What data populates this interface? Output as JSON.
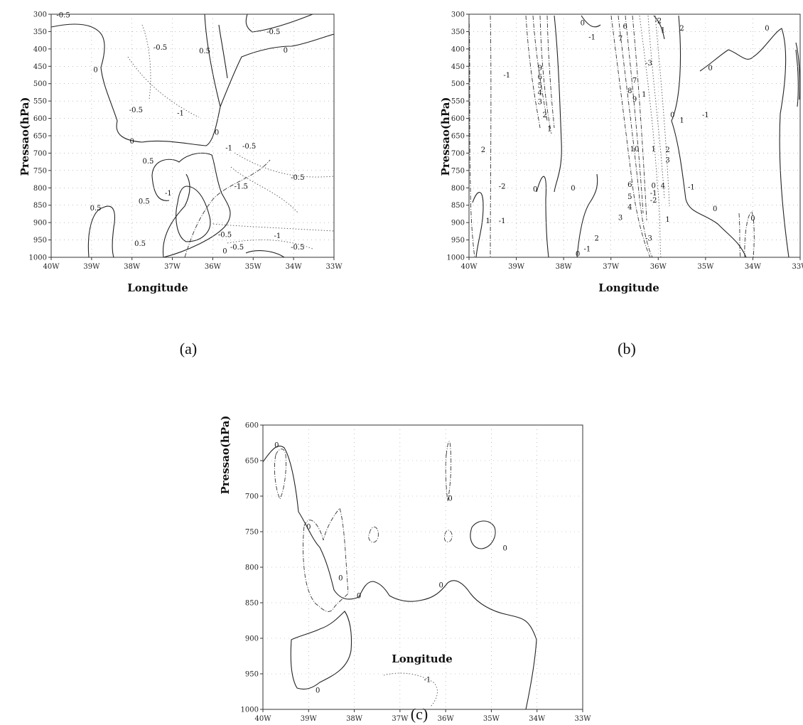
{
  "chart_data": [
    {
      "id": "a",
      "type": "contour",
      "caption": "(a)",
      "xlabel": "Longitude",
      "ylabel": "Pressao(hPa)",
      "x_ticks": [
        "40W",
        "39W",
        "38W",
        "37W",
        "36W",
        "35W",
        "34W",
        "33W"
      ],
      "xlim": [
        -40,
        -33
      ],
      "y_ticks": [
        300,
        350,
        400,
        450,
        500,
        550,
        600,
        650,
        700,
        750,
        800,
        850,
        900,
        950,
        1000
      ],
      "ylim": [
        300,
        1000
      ],
      "contour_labels": [
        {
          "text": "-0.5",
          "lon": -39.7,
          "p": 302
        },
        {
          "text": "-0.5",
          "lon": -37.3,
          "p": 395
        },
        {
          "text": "-0.5",
          "lon": -34.5,
          "p": 350
        },
        {
          "text": "0.5",
          "lon": -36.2,
          "p": 405
        },
        {
          "text": "0",
          "lon": -34.2,
          "p": 403
        },
        {
          "text": "0",
          "lon": -38.9,
          "p": 460
        },
        {
          "text": "-0.5",
          "lon": -37.9,
          "p": 575
        },
        {
          "text": "-1",
          "lon": -36.8,
          "p": 585
        },
        {
          "text": "0",
          "lon": -35.9,
          "p": 640
        },
        {
          "text": "-1",
          "lon": -35.6,
          "p": 685
        },
        {
          "text": "-0.5",
          "lon": -35.1,
          "p": 680
        },
        {
          "text": "0",
          "lon": -38.0,
          "p": 665
        },
        {
          "text": "0.5",
          "lon": -37.6,
          "p": 723
        },
        {
          "text": "-1.5",
          "lon": -35.3,
          "p": 795
        },
        {
          "text": "-0.5",
          "lon": -33.9,
          "p": 770
        },
        {
          "text": "0.5",
          "lon": -37.7,
          "p": 838
        },
        {
          "text": "-1",
          "lon": -37.1,
          "p": 815
        },
        {
          "text": "0.5",
          "lon": -38.9,
          "p": 858
        },
        {
          "text": "-0.5",
          "lon": -35.7,
          "p": 935
        },
        {
          "text": "-1",
          "lon": -34.4,
          "p": 938
        },
        {
          "text": "0.5",
          "lon": -37.8,
          "p": 960
        },
        {
          "text": "-0.5",
          "lon": -35.4,
          "p": 970
        },
        {
          "text": "-0.5",
          "lon": -33.9,
          "p": 970
        },
        {
          "text": "0",
          "lon": -35.7,
          "p": 982
        }
      ]
    },
    {
      "id": "b",
      "type": "contour",
      "caption": "(b)",
      "xlabel": "Longitude",
      "ylabel": "Pressao(hPa)",
      "x_ticks": [
        "40W",
        "39W",
        "38W",
        "37W",
        "36W",
        "35W",
        "34W",
        "33W"
      ],
      "xlim": [
        -40,
        -33
      ],
      "y_ticks": [
        300,
        350,
        400,
        450,
        500,
        550,
        600,
        650,
        700,
        750,
        800,
        850,
        900,
        950,
        1000
      ],
      "ylim": [
        300,
        1000
      ],
      "contour_labels": [
        {
          "text": "0",
          "lon": -37.6,
          "p": 325
        },
        {
          "text": "-1",
          "lon": -37.4,
          "p": 365
        },
        {
          "text": "6",
          "lon": -36.7,
          "p": 335
        },
        {
          "text": "7",
          "lon": -36.8,
          "p": 370
        },
        {
          "text": "-2",
          "lon": -36.0,
          "p": 318
        },
        {
          "text": "1",
          "lon": -35.9,
          "p": 345
        },
        {
          "text": "2",
          "lon": -35.5,
          "p": 340
        },
        {
          "text": "-1",
          "lon": -39.2,
          "p": 475
        },
        {
          "text": "0",
          "lon": -34.9,
          "p": 455
        },
        {
          "text": "0",
          "lon": -33.7,
          "p": 340
        },
        {
          "text": "9",
          "lon": -38.5,
          "p": 455
        },
        {
          "text": "6",
          "lon": -38.5,
          "p": 480
        },
        {
          "text": "5",
          "lon": -38.5,
          "p": 505
        },
        {
          "text": "4",
          "lon": -38.5,
          "p": 525
        },
        {
          "text": "3",
          "lon": -38.5,
          "p": 552
        },
        {
          "text": "2",
          "lon": -38.4,
          "p": 590
        },
        {
          "text": "1",
          "lon": -38.3,
          "p": 630
        },
        {
          "text": "-3",
          "lon": -36.2,
          "p": 440
        },
        {
          "text": "7",
          "lon": -36.5,
          "p": 490
        },
        {
          "text": "8",
          "lon": -36.6,
          "p": 520
        },
        {
          "text": "1",
          "lon": -36.3,
          "p": 530
        },
        {
          "text": "9",
          "lon": -36.5,
          "p": 545
        },
        {
          "text": "0",
          "lon": -35.7,
          "p": 590
        },
        {
          "text": "1",
          "lon": -35.5,
          "p": 605
        },
        {
          "text": "-1",
          "lon": -35.0,
          "p": 590
        },
        {
          "text": "10",
          "lon": -36.5,
          "p": 688
        },
        {
          "text": "1",
          "lon": -36.1,
          "p": 688
        },
        {
          "text": "2",
          "lon": -35.8,
          "p": 690
        },
        {
          "text": "3",
          "lon": -35.8,
          "p": 720
        },
        {
          "text": "2",
          "lon": -39.7,
          "p": 690
        },
        {
          "text": "-2",
          "lon": -39.3,
          "p": 795
        },
        {
          "text": "0",
          "lon": -38.6,
          "p": 803
        },
        {
          "text": "0",
          "lon": -37.8,
          "p": 800
        },
        {
          "text": "6",
          "lon": -36.6,
          "p": 790
        },
        {
          "text": "5",
          "lon": -36.6,
          "p": 825
        },
        {
          "text": "4",
          "lon": -36.6,
          "p": 855
        },
        {
          "text": "0",
          "lon": -36.1,
          "p": 793
        },
        {
          "text": "4",
          "lon": -35.9,
          "p": 793
        },
        {
          "text": "-1",
          "lon": -36.1,
          "p": 815
        },
        {
          "text": "-2",
          "lon": -36.1,
          "p": 835
        },
        {
          "text": "-1",
          "lon": -35.3,
          "p": 797
        },
        {
          "text": "3",
          "lon": -36.8,
          "p": 885
        },
        {
          "text": "1",
          "lon": -35.8,
          "p": 890
        },
        {
          "text": "1",
          "lon": -39.6,
          "p": 895
        },
        {
          "text": "-1",
          "lon": -39.3,
          "p": 895
        },
        {
          "text": "0",
          "lon": -34.8,
          "p": 860
        },
        {
          "text": "0",
          "lon": -34.0,
          "p": 887
        },
        {
          "text": "2",
          "lon": -37.3,
          "p": 945
        },
        {
          "text": "-3",
          "lon": -36.2,
          "p": 945
        },
        {
          "text": "0",
          "lon": -37.7,
          "p": 990
        },
        {
          "text": "-1",
          "lon": -37.5,
          "p": 975
        }
      ]
    },
    {
      "id": "c",
      "type": "contour",
      "caption": "(c)",
      "xlabel": "Longitude",
      "ylabel": "Pressao(hPa)",
      "x_ticks": [
        "40W",
        "39W",
        "38W",
        "37W",
        "36W",
        "35W",
        "34W",
        "33W"
      ],
      "xlim": [
        -40,
        -33
      ],
      "y_ticks": [
        600,
        650,
        700,
        750,
        800,
        850,
        900,
        950,
        1000
      ],
      "ylim": [
        600,
        1000
      ],
      "contour_labels": [
        {
          "text": "0",
          "lon": -39.7,
          "p": 628
        },
        {
          "text": "0",
          "lon": -35.9,
          "p": 703
        },
        {
          "text": "0",
          "lon": -39.0,
          "p": 743
        },
        {
          "text": "0",
          "lon": -34.7,
          "p": 773
        },
        {
          "text": "0",
          "lon": -38.3,
          "p": 815
        },
        {
          "text": "0",
          "lon": -36.1,
          "p": 825
        },
        {
          "text": "0",
          "lon": -37.9,
          "p": 840
        },
        {
          "text": "0",
          "lon": -38.8,
          "p": 973
        },
        {
          "text": "-1",
          "lon": -36.4,
          "p": 958
        }
      ]
    }
  ]
}
